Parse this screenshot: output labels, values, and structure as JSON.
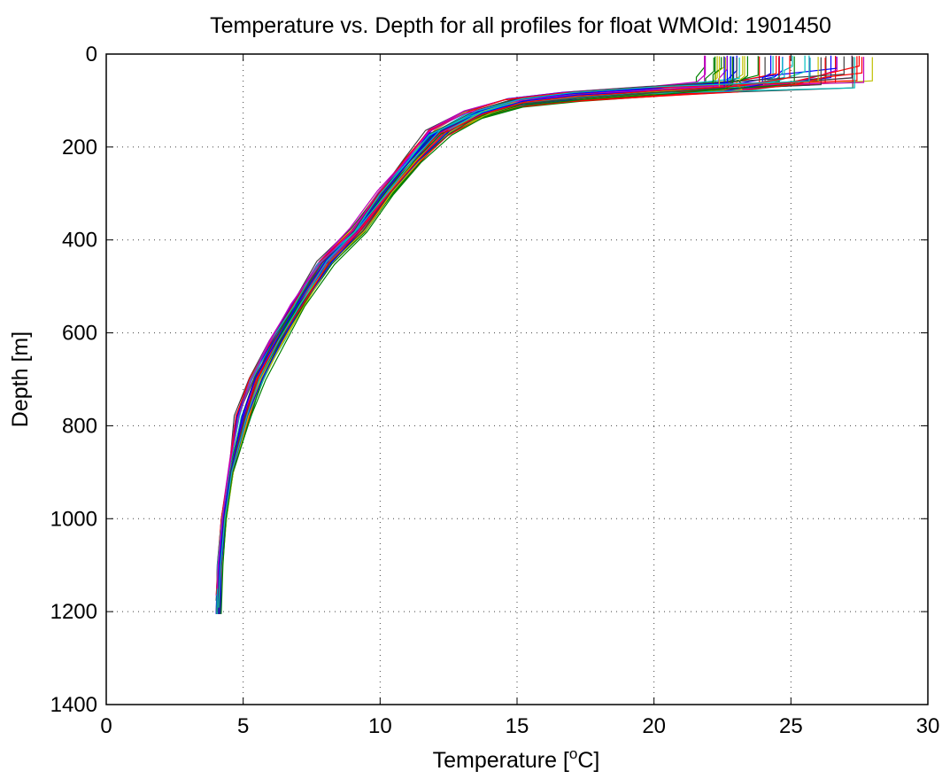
{
  "chart_data": {
    "type": "line",
    "title": "Temperature vs. Depth for all profiles for float WMOId: 1901450",
    "xlabel_prefix": "Temperature [",
    "xlabel_sup": "o",
    "xlabel_suffix": "C]",
    "ylabel": "Depth [m]",
    "xlim": [
      0,
      30
    ],
    "ylim": [
      1400,
      0
    ],
    "y_reversed": true,
    "grid": true,
    "xticks": [
      0,
      5,
      10,
      15,
      20,
      25,
      30
    ],
    "yticks": [
      0,
      200,
      400,
      600,
      800,
      1000,
      1200,
      1400
    ],
    "series_colors": [
      "#0000ff",
      "#008000",
      "#ff0000",
      "#00bfbf",
      "#bf00bf",
      "#bfbf00",
      "#404040"
    ],
    "base_profile": {
      "temperature": [
        4.1,
        4.15,
        4.3,
        4.55,
        5.0,
        5.5,
        6.2,
        7.0,
        8.0,
        9.2,
        10.2,
        11.2,
        12.2,
        13.5,
        15.0,
        17.0,
        20.0,
        23.0,
        25.0,
        26.0,
        26.5
      ],
      "depth": [
        1205,
        1100,
        1000,
        900,
        780,
        700,
        620,
        540,
        450,
        380,
        300,
        230,
        170,
        130,
        105,
        92,
        80,
        70,
        55,
        40,
        20
      ]
    },
    "profile_count": 60,
    "surface_temperature_range": [
      21.8,
      28.2
    ]
  }
}
